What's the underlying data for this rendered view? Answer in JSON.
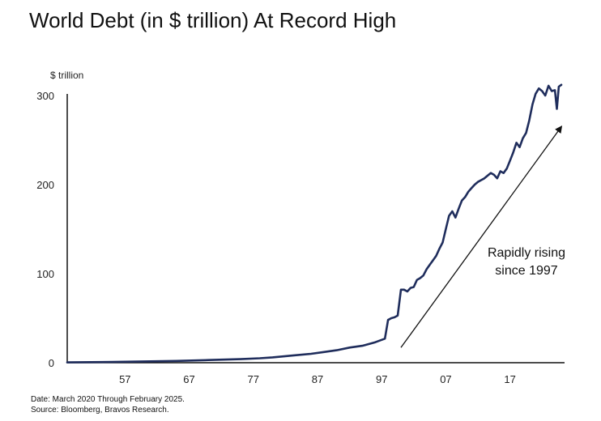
{
  "header": {
    "title": "World Debt (in $ trillion) At Record High"
  },
  "chart_data": {
    "type": "line",
    "title": "World Debt (in $ trillion) At Record High",
    "ylabel": "$ trillion",
    "xlabel": "",
    "xlim": [
      1948,
      2025.5
    ],
    "ylim": [
      0,
      300
    ],
    "yticks": [
      0,
      100,
      200,
      300
    ],
    "xtick_labels": [
      {
        "x": 1957,
        "label": "57"
      },
      {
        "x": 1967,
        "label": "67"
      },
      {
        "x": 1977,
        "label": "77"
      },
      {
        "x": 1987,
        "label": "87"
      },
      {
        "x": 1997,
        "label": "97"
      },
      {
        "x": 2007,
        "label": "07"
      },
      {
        "x": 2017,
        "label": "17"
      }
    ],
    "grid": false,
    "legend": "none",
    "series": [
      {
        "color": "#1f2d5c",
        "points": [
          [
            1948,
            0.4
          ],
          [
            1955,
            0.8
          ],
          [
            1960,
            1.5
          ],
          [
            1965,
            2
          ],
          [
            1970,
            3
          ],
          [
            1975,
            4
          ],
          [
            1978,
            5
          ],
          [
            1980,
            6
          ],
          [
            1983,
            8
          ],
          [
            1986,
            10
          ],
          [
            1988,
            12
          ],
          [
            1990,
            14
          ],
          [
            1992,
            17
          ],
          [
            1994,
            19
          ],
          [
            1996,
            23
          ],
          [
            1997.5,
            27
          ],
          [
            1998,
            48
          ],
          [
            1998.5,
            50
          ],
          [
            1999,
            51
          ],
          [
            1999.5,
            53
          ],
          [
            2000,
            82
          ],
          [
            2000.5,
            82
          ],
          [
            2001,
            80
          ],
          [
            2001.5,
            84
          ],
          [
            2002,
            85
          ],
          [
            2002.5,
            93
          ],
          [
            2003,
            95
          ],
          [
            2003.5,
            98
          ],
          [
            2004,
            105
          ],
          [
            2004.5,
            110
          ],
          [
            2005,
            115
          ],
          [
            2005.5,
            120
          ],
          [
            2006,
            128
          ],
          [
            2006.5,
            135
          ],
          [
            2007,
            150
          ],
          [
            2007.5,
            165
          ],
          [
            2008,
            170
          ],
          [
            2008.5,
            163
          ],
          [
            2009,
            173
          ],
          [
            2009.5,
            182
          ],
          [
            2010,
            186
          ],
          [
            2010.5,
            192
          ],
          [
            2011,
            196
          ],
          [
            2011.5,
            200
          ],
          [
            2012,
            203
          ],
          [
            2012.5,
            205
          ],
          [
            2013,
            207
          ],
          [
            2013.5,
            210
          ],
          [
            2014,
            213
          ],
          [
            2014.5,
            211
          ],
          [
            2015,
            207
          ],
          [
            2015.5,
            215
          ],
          [
            2016,
            213
          ],
          [
            2016.5,
            218
          ],
          [
            2017,
            227
          ],
          [
            2017.5,
            236
          ],
          [
            2018,
            247
          ],
          [
            2018.5,
            242
          ],
          [
            2019,
            252
          ],
          [
            2019.5,
            258
          ],
          [
            2020,
            272
          ],
          [
            2020.5,
            290
          ],
          [
            2021,
            302
          ],
          [
            2021.5,
            308
          ],
          [
            2022,
            305
          ],
          [
            2022.5,
            300
          ],
          [
            2023,
            311
          ],
          [
            2023.5,
            305
          ],
          [
            2024,
            306
          ],
          [
            2024.3,
            285
          ],
          [
            2024.6,
            310
          ],
          [
            2025,
            312
          ]
        ]
      }
    ],
    "annotations": [
      {
        "text_lines": [
          "Rapidly rising",
          "since 1997"
        ],
        "arrow_from": [
          2000,
          17
        ],
        "arrow_to": [
          2025,
          265
        ]
      }
    ],
    "footer": [
      "Date: March 2020 Through February 2025.",
      "Source: Bloomberg, Bravos Research."
    ]
  }
}
